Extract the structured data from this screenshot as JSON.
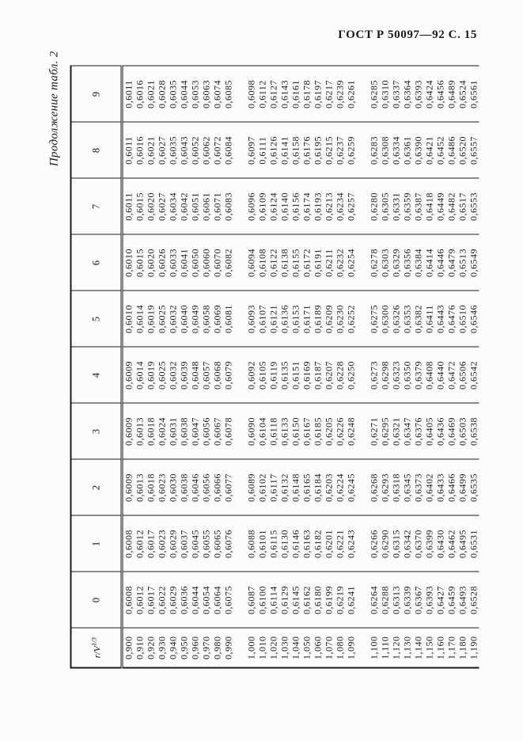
{
  "page_header": "ГОСТ Р 50097—92 С. 15",
  "table_caption": "Продолжение табл. 2",
  "table": {
    "corner_base": "r/V",
    "corner_exp": "1/3",
    "col_headers": [
      "0",
      "1",
      "2",
      "3",
      "4",
      "5",
      "6",
      "7",
      "8",
      "9"
    ],
    "group_break_after_indices": [
      9,
      19
    ],
    "rows": [
      {
        "label": "0,900",
        "values": [
          "0,6008",
          "0,6008",
          "0,6009",
          "0,6009",
          "0,6009",
          "0,6010",
          "0,6010",
          "0,6011",
          "0,6011",
          "0,6011"
        ]
      },
      {
        "label": "0,910",
        "values": [
          "0,6012",
          "0,6012",
          "0,6013",
          "0,6013",
          "0,6014",
          "0,6014",
          "0,6015",
          "0,6015",
          "0,6016",
          "0,6016"
        ]
      },
      {
        "label": "0,920",
        "values": [
          "0,6017",
          "0,6017",
          "0,6018",
          "0,6018",
          "0,6019",
          "0,6019",
          "0,6020",
          "0,6020",
          "0,6021",
          "0,6021"
        ]
      },
      {
        "label": "0,930",
        "values": [
          "0,6022",
          "0,6023",
          "0,6023",
          "0,6024",
          "0,6025",
          "0,6025",
          "0,6026",
          "0,6027",
          "0,6027",
          "0,6028"
        ]
      },
      {
        "label": "0,940",
        "values": [
          "0,6029",
          "0,6029",
          "0,6030",
          "0,6031",
          "0,6032",
          "0,6032",
          "0,6033",
          "0,6034",
          "0,6035",
          "0,6035"
        ]
      },
      {
        "label": "0,950",
        "values": [
          "0,6036",
          "0,6037",
          "0,6038",
          "0,6038",
          "0,6039",
          "0,6040",
          "0,6041",
          "0,6042",
          "0,6043",
          "0,6044"
        ]
      },
      {
        "label": "0,960",
        "values": [
          "0,6044",
          "0,6045",
          "0,6046",
          "0,6047",
          "0,6048",
          "0,6049",
          "0,6050",
          "0,6051",
          "0,6052",
          "0,6053"
        ]
      },
      {
        "label": "0,970",
        "values": [
          "0,6054",
          "0,6055",
          "0,6056",
          "0,6056",
          "0,6057",
          "0,6058",
          "0,6060",
          "0,6061",
          "0,6062",
          "0,6063"
        ]
      },
      {
        "label": "0,980",
        "values": [
          "0,6064",
          "0,6065",
          "0,6066",
          "0,6067",
          "0,6068",
          "0,6069",
          "0,6070",
          "0,6071",
          "0,6072",
          "0,6074"
        ]
      },
      {
        "label": "0,990",
        "values": [
          "0,6075",
          "0,6076",
          "0,6077",
          "0,6078",
          "0,6079",
          "0,6081",
          "0,6082",
          "0,6083",
          "0,6084",
          "0,6085"
        ]
      },
      {
        "label": "1,000",
        "values": [
          "0,6087",
          "0,6088",
          "0,6089",
          "0,6090",
          "0,6092",
          "0,6093",
          "0,6094",
          "0,6096",
          "0,6097",
          "0,6098"
        ]
      },
      {
        "label": "1,010",
        "values": [
          "0,6100",
          "0,6101",
          "0,6102",
          "0,6104",
          "0,6105",
          "0,6107",
          "0,6108",
          "0,6109",
          "0,6111",
          "0,6112"
        ]
      },
      {
        "label": "1,020",
        "values": [
          "0,6114",
          "0,6115",
          "0,6117",
          "0,6118",
          "0,6119",
          "0,6121",
          "0,6122",
          "0,6124",
          "0,6126",
          "0,6127"
        ]
      },
      {
        "label": "1,030",
        "values": [
          "0,6129",
          "0,6130",
          "0,6132",
          "0,6133",
          "0,6135",
          "0,6136",
          "0,6138",
          "0,6140",
          "0,6141",
          "0,6143"
        ]
      },
      {
        "label": "1,040",
        "values": [
          "0,6145",
          "0,6146",
          "0,6148",
          "0,6150",
          "0,6151",
          "0,6153",
          "0,6155",
          "0,6156",
          "0,6158",
          "0,6161"
        ]
      },
      {
        "label": "1,050",
        "values": [
          "0,6162",
          "0,6163",
          "0,6165",
          "0,6167",
          "0,6169",
          "0,6171",
          "0,6172",
          "0,6174",
          "0,6176",
          "0,6178"
        ]
      },
      {
        "label": "1,060",
        "values": [
          "0,6180",
          "0,6182",
          "0,6184",
          "0,6185",
          "0,6187",
          "0,6189",
          "0,6191",
          "0,6193",
          "0,6195",
          "0,6197"
        ]
      },
      {
        "label": "1,070",
        "values": [
          "0,6199",
          "0,6201",
          "0,6203",
          "0,6205",
          "0,6207",
          "0,6209",
          "0,6211",
          "0,6213",
          "0,6215",
          "0,6217"
        ]
      },
      {
        "label": "1,080",
        "values": [
          "0,6219",
          "0,6221",
          "0,6224",
          "0,6226",
          "0,6228",
          "0,6230",
          "0,6232",
          "0,6234",
          "0,6237",
          "0,6239"
        ]
      },
      {
        "label": "1,090",
        "values": [
          "0,6241",
          "0,6243",
          "0,6245",
          "0,6248",
          "0,6250",
          "0,6252",
          "0,6254",
          "0,6257",
          "0,6259",
          "0,6261"
        ]
      },
      {
        "label": "1,100",
        "values": [
          "0,6264",
          "0,6266",
          "0,6268",
          "0,6271",
          "0,6273",
          "0,6275",
          "0,6278",
          "0,6280",
          "0,6283",
          "0,6285"
        ]
      },
      {
        "label": "1,110",
        "values": [
          "0,6288",
          "0,6290",
          "0,6293",
          "0,6295",
          "0,6298",
          "0,6300",
          "0,6303",
          "0,6305",
          "0,6308",
          "0,6310"
        ]
      },
      {
        "label": "1,120",
        "values": [
          "0,6313",
          "0,6315",
          "0,6318",
          "0,6321",
          "0,6323",
          "0,6326",
          "0,6329",
          "0,6331",
          "0,6334",
          "0,6337"
        ]
      },
      {
        "label": "1,130",
        "values": [
          "0,6339",
          "0,6342",
          "0,6345",
          "0,6347",
          "0,6350",
          "0,6353",
          "0,6356",
          "0,6359",
          "0,6361",
          "0,6364"
        ]
      },
      {
        "label": "1,140",
        "values": [
          "0,6367",
          "0,6370",
          "0,6373",
          "0,6376",
          "0,6379",
          "0,6382",
          "0,6384",
          "0,6387",
          "0,6390",
          "0,6393"
        ]
      },
      {
        "label": "1,150",
        "values": [
          "0,6393",
          "0,6399",
          "0,6402",
          "0,6405",
          "0,6408",
          "0,6411",
          "0,6414",
          "0,6418",
          "0,6421",
          "0,6424"
        ]
      },
      {
        "label": "1,160",
        "values": [
          "0,6427",
          "0,6430",
          "0,6433",
          "0,6436",
          "0,6440",
          "0,6443",
          "0,6446",
          "0,6449",
          "0,6452",
          "0,6456"
        ]
      },
      {
        "label": "1,170",
        "values": [
          "0,6459",
          "0,6462",
          "0,6466",
          "0,6469",
          "0,6472",
          "0,6476",
          "0,6479",
          "0,6482",
          "0,6486",
          "0,6489"
        ]
      },
      {
        "label": "1,180",
        "values": [
          "0,6493",
          "0,6495",
          "0,6499",
          "0,6503",
          "0,6506",
          "0,6510",
          "0,6513",
          "0,6517",
          "0,6520",
          "0,6524"
        ]
      },
      {
        "label": "1,190",
        "values": [
          "0,6528",
          "0,6531",
          "0,6535",
          "0,6538",
          "0,6542",
          "0,6546",
          "0,6549",
          "0,6553",
          "0,6557",
          "0,6561"
        ]
      }
    ]
  }
}
